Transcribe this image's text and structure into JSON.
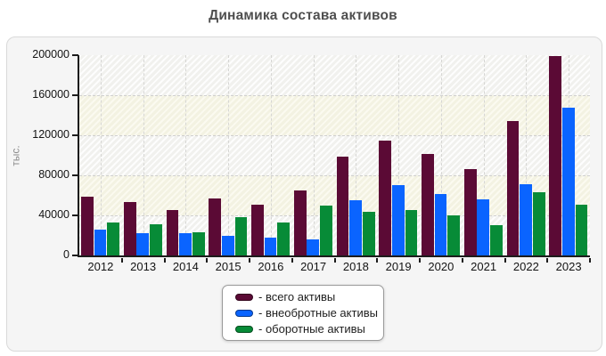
{
  "page": {
    "title": "Динамика состава активов"
  },
  "chart_data": {
    "type": "bar",
    "title": "Динамика состава активов",
    "xlabel": "",
    "ylabel": "тыс.",
    "ylim": [
      0,
      200000
    ],
    "y_ticks": [
      0,
      40000,
      80000,
      120000,
      160000,
      200000
    ],
    "grid": true,
    "legend_position": "bottom-center",
    "categories": [
      "2012",
      "2013",
      "2014",
      "2015",
      "2016",
      "2017",
      "2018",
      "2019",
      "2020",
      "2021",
      "2022",
      "2023"
    ],
    "series": [
      {
        "name": "всего активы",
        "color": "#5b0a35",
        "values": [
          59000,
          53000,
          45000,
          57000,
          51000,
          65000,
          99000,
          115000,
          101000,
          86000,
          134000,
          199000
        ]
      },
      {
        "name": "внеобротные активы",
        "color": "#0a64ff",
        "values": [
          26000,
          22000,
          22000,
          20000,
          18000,
          16000,
          55000,
          70000,
          61000,
          56000,
          71000,
          148000
        ]
      },
      {
        "name": "оборотные активы",
        "color": "#078b37",
        "values": [
          33000,
          31000,
          23000,
          38000,
          33000,
          50000,
          44000,
          45000,
          40000,
          30000,
          63000,
          51000
        ]
      }
    ]
  },
  "legend": {
    "items": [
      {
        "label": "- всего активы",
        "color": "#5b0a35"
      },
      {
        "label": "- внеобротные активы",
        "color": "#0a64ff"
      },
      {
        "label": "- оборотные активы",
        "color": "#078b37"
      }
    ]
  },
  "colors": {
    "axis": "#1c1c1c",
    "gridline": "#cfcfcf",
    "panel_bg": "#f5f5f5",
    "panel_border": "#d9d9d9",
    "band_white": "#fdfdfd",
    "band_cream": "#f6f5e8",
    "title_text": "#4f4f4f"
  }
}
